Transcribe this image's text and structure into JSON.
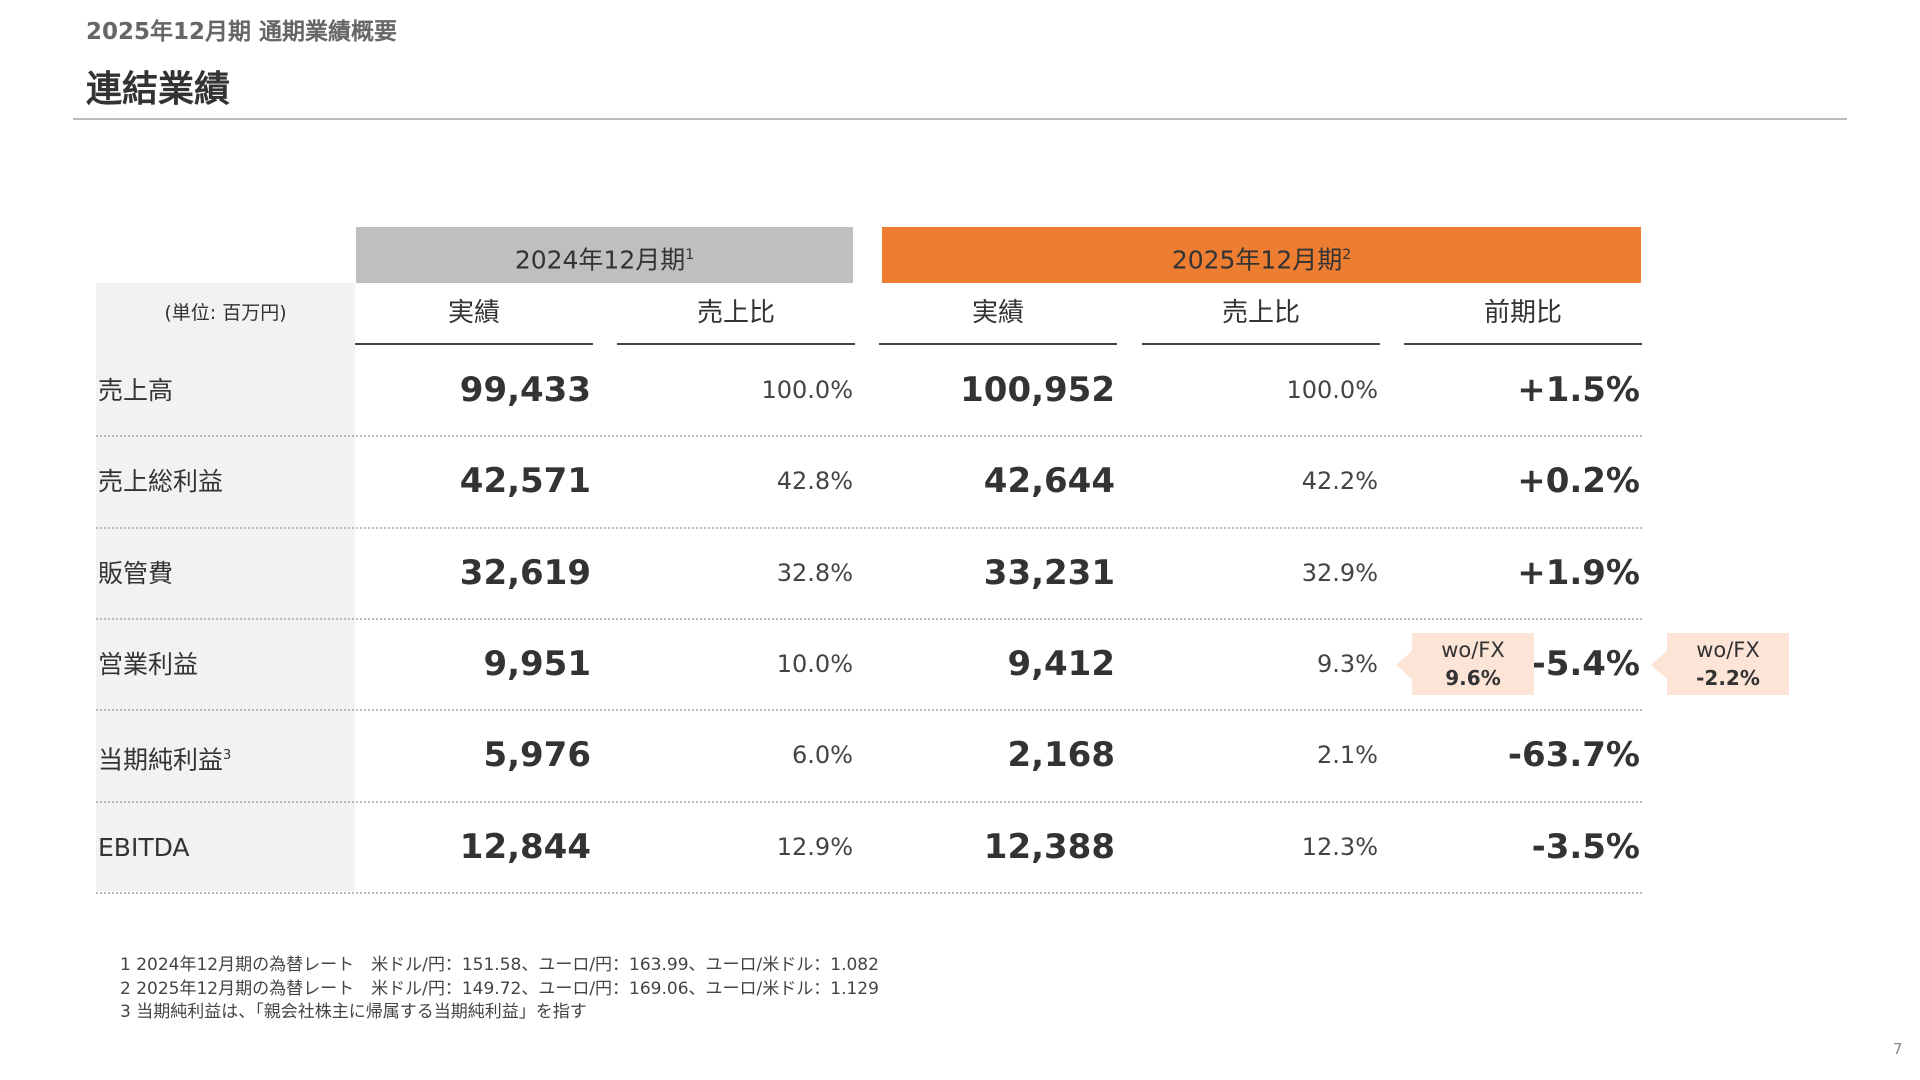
{
  "header": {
    "subtitle": "2025年12月期 通期業績概要",
    "title": "連結業績"
  },
  "table": {
    "groups": [
      {
        "label": "2024年12月期",
        "sup": "1"
      },
      {
        "label": "2025年12月期",
        "sup": "2"
      }
    ],
    "unit": "(単位: 百万円)",
    "columns": [
      "実績",
      "売上比",
      "実績",
      "売上比",
      "前期比"
    ],
    "rows": [
      {
        "label": "売上高",
        "cells": [
          "99,433",
          "100.0%",
          "100,952",
          "100.0%",
          "+1.5%"
        ]
      },
      {
        "label": "売上総利益",
        "cells": [
          "42,571",
          "42.8%",
          "42,644",
          "42.2%",
          "+0.2%"
        ]
      },
      {
        "label": "販管費",
        "cells": [
          "32,619",
          "32.8%",
          "33,231",
          "32.9%",
          "+1.9%"
        ]
      },
      {
        "label": "営業利益",
        "cells": [
          "9,951",
          "10.0%",
          "9,412",
          "9.3%",
          "-5.4%"
        ]
      },
      {
        "label": "当期純利益",
        "sup": "3",
        "cells": [
          "5,976",
          "6.0%",
          "2,168",
          "2.1%",
          "-63.7%"
        ]
      },
      {
        "label": "EBITDA",
        "cells": [
          "12,844",
          "12.9%",
          "12,388",
          "12.3%",
          "-3.5%"
        ]
      }
    ]
  },
  "callouts": [
    {
      "label": "wo/FX",
      "value": "9.6%"
    },
    {
      "label": "wo/FX",
      "value": "-2.2%"
    }
  ],
  "footnotes": [
    "1 2024年12月期の為替レート　米ドル/円：151.58、ユーロ/円：163.99、ユーロ/米ドル：1.082",
    "2 2025年12月期の為替レート　米ドル/円：149.72、ユーロ/円：169.06、ユーロ/米ドル：1.129",
    "3 当期純利益は、「親会社株主に帰属する当期純利益」を指す"
  ],
  "page_number": "7"
}
